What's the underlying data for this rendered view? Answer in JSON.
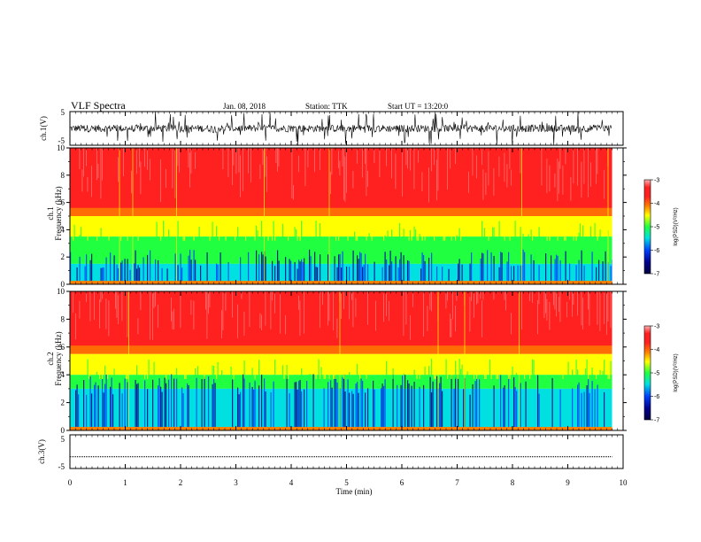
{
  "header": {
    "title": "VLF Spectra",
    "date": "Jan. 08, 2018",
    "station": "Station: TTK",
    "start_ut": "Start UT = 13:20:0"
  },
  "chart_data": [
    {
      "type": "line",
      "name": "ch1-waveform",
      "ylabel": "ch.1(V)",
      "ylim": [
        -5,
        5
      ],
      "ytick_labels": [
        "-5",
        "5"
      ],
      "xlim": [
        0,
        10
      ],
      "description": "dense noisy waveform, amplitude mostly within ±2 V with spikes to ±5 V"
    },
    {
      "type": "heatmap",
      "name": "ch1-spectrogram",
      "ylabel_line1": "ch.1",
      "ylabel_line2": "Frequency (kHz)",
      "ylim": [
        0,
        10
      ],
      "ytick_labels": [
        "0",
        "2",
        "4",
        "6",
        "8",
        "10"
      ],
      "xlim": [
        0,
        9.8
      ],
      "colorbar": {
        "label": "log(PSD)(V²/Hz)",
        "range": [
          -7,
          -3
        ],
        "tick_labels": [
          "-3",
          "-4",
          "-5",
          "-6",
          "-7"
        ]
      },
      "bands_khz": {
        "blue_cyan_top": 1.5,
        "green_top": 3.5,
        "yellow_top": 5,
        "red_top": 10
      }
    },
    {
      "type": "heatmap",
      "name": "ch2-spectrogram",
      "ylabel_line1": "ch.2",
      "ylabel_line2": "Frequency (kHz)",
      "ylim": [
        0,
        10
      ],
      "ytick_labels": [
        "0",
        "2",
        "4",
        "6",
        "8",
        "10"
      ],
      "xlim": [
        0,
        9.8
      ],
      "colorbar": {
        "label": "log(PSD)(V²/Hz)",
        "range": [
          -7,
          -3
        ],
        "tick_labels": [
          "-3",
          "-4",
          "-5",
          "-6",
          "-7"
        ]
      },
      "bands_khz": {
        "blue_cyan_top": 3,
        "green_top": 4,
        "yellow_top": 5.5,
        "red_top": 10
      }
    },
    {
      "type": "line",
      "name": "ch3-waveform",
      "ylabel": "ch.3(V)",
      "ylim": [
        -5,
        5
      ],
      "ytick_labels": [
        "-5",
        "5"
      ],
      "xlim": [
        0,
        10
      ],
      "values_constant": -1.5
    }
  ],
  "xaxis": {
    "label": "Time (min)",
    "tick_labels": [
      "0",
      "1",
      "2",
      "3",
      "4",
      "5",
      "6",
      "7",
      "8",
      "9",
      "10"
    ],
    "range": [
      0,
      10
    ]
  },
  "colors": {
    "dark_blue": "#00008b",
    "blue": "#0040ff",
    "cyan": "#00e0e0",
    "green": "#20ff40",
    "yellow": "#ffff00",
    "orange": "#ff8000",
    "red": "#ff2020",
    "pink": "#ffb0b0"
  }
}
